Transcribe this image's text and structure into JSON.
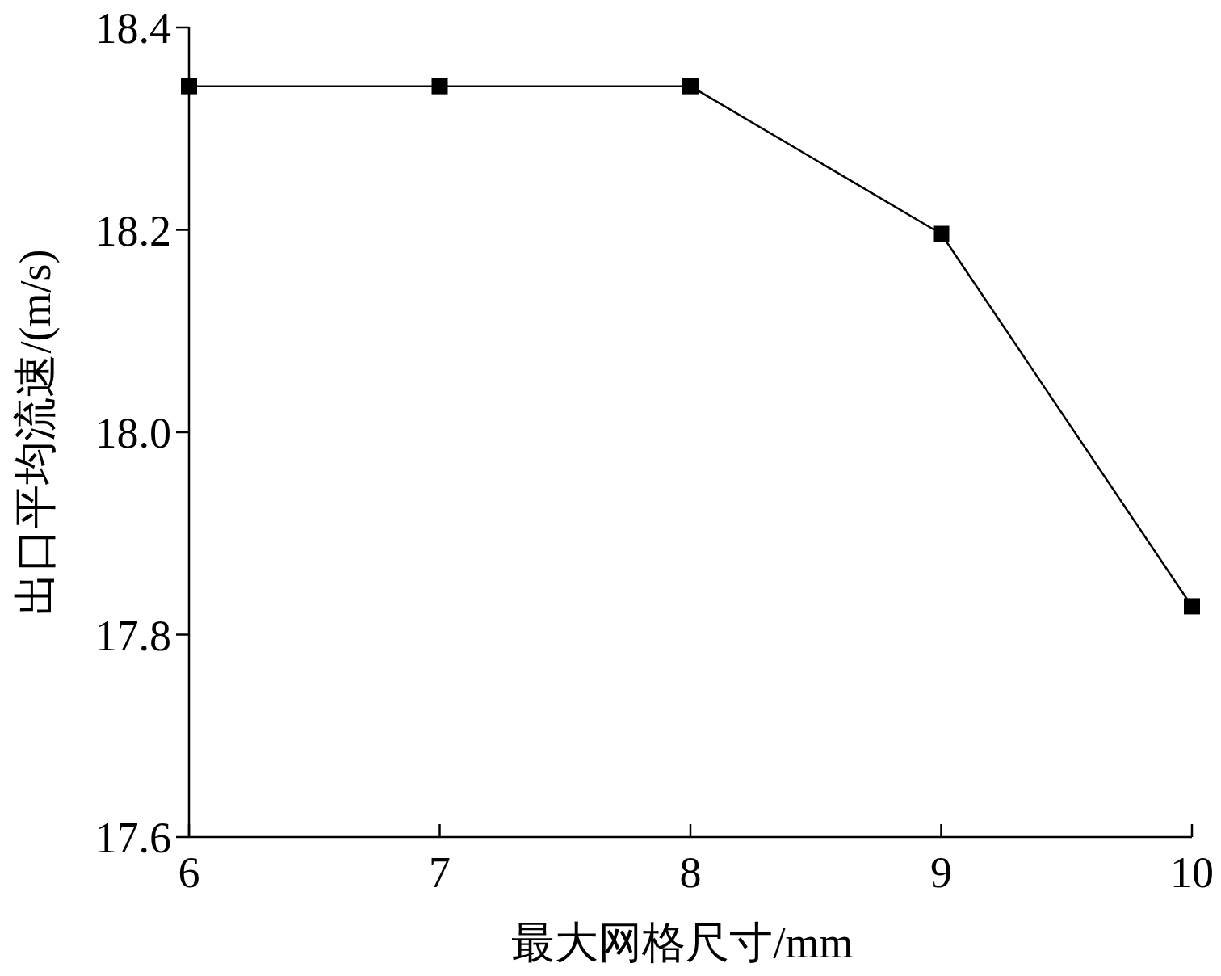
{
  "chart_data": {
    "type": "line",
    "xlabel": "最大网格尺寸/mm",
    "ylabel": "出口平均流速/(m/s)",
    "x": [
      6,
      7,
      8,
      9,
      10
    ],
    "series": [
      {
        "color": "#000000",
        "values": [
          18.342,
          18.342,
          18.342,
          18.196,
          17.828
        ]
      }
    ],
    "xlim": [
      6,
      10
    ],
    "xticks": [
      6,
      7,
      8,
      9,
      10
    ],
    "ylim": [
      17.6,
      18.4
    ],
    "yticks": [
      {
        "value": 17.6,
        "label": "17.6"
      },
      {
        "value": 17.8,
        "label": "17.8"
      },
      {
        "value": 18.0,
        "label": "18.0"
      },
      {
        "value": 18.2,
        "label": "18.2"
      },
      {
        "value": 18.4,
        "label": "18.4"
      }
    ],
    "marker": "square",
    "line_style": "solid",
    "grid": false
  }
}
